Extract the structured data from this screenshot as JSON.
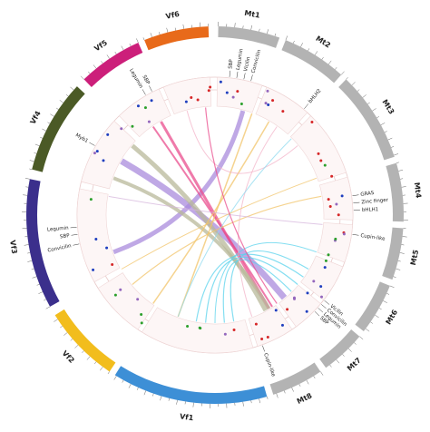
{
  "segments": [
    {
      "label": "Mt1",
      "color": "#b3b3b3"
    },
    {
      "label": "Mt2",
      "color": "#b3b3b3"
    },
    {
      "label": "Mt3",
      "color": "#b3b3b3"
    },
    {
      "label": "Mt4",
      "color": "#b3b3b3"
    },
    {
      "label": "Mt5",
      "color": "#b3b3b3"
    },
    {
      "label": "Mt6",
      "color": "#b3b3b3"
    },
    {
      "label": "Mt7",
      "color": "#b3b3b3"
    },
    {
      "label": "Mt8",
      "color": "#b3b3b3"
    },
    {
      "label": "Vf1",
      "color": "#3d8fd6"
    },
    {
      "label": "Vf2",
      "color": "#f2bd1d"
    },
    {
      "label": "Vf3",
      "color": "#3b2f8c"
    },
    {
      "label": "Vf4",
      "color": "#4b5a26"
    },
    {
      "label": "Vf5",
      "color": "#cc1f7a"
    },
    {
      "label": "Vf6",
      "color": "#e86a1a"
    }
  ],
  "genes": [
    {
      "label": "SBP"
    },
    {
      "label": "Legumin"
    },
    {
      "label": "Vicilin"
    },
    {
      "label": "Convicilin"
    },
    {
      "label": "bHLH2"
    },
    {
      "label": "GRAS"
    },
    {
      "label": "Zinc finger"
    },
    {
      "label": "bHLH1"
    },
    {
      "label": "Cupin-like"
    },
    {
      "label": "Vicilin"
    },
    {
      "label": "Convicilin"
    },
    {
      "label": "Legumin"
    },
    {
      "label": "SBP"
    },
    {
      "label": "Cupin-like"
    },
    {
      "label": "SBP"
    },
    {
      "label": "Legumin"
    },
    {
      "label": "Convicilin"
    },
    {
      "label": "Myb1"
    },
    {
      "label": "Legumin"
    },
    {
      "label": "SBP"
    }
  ]
}
